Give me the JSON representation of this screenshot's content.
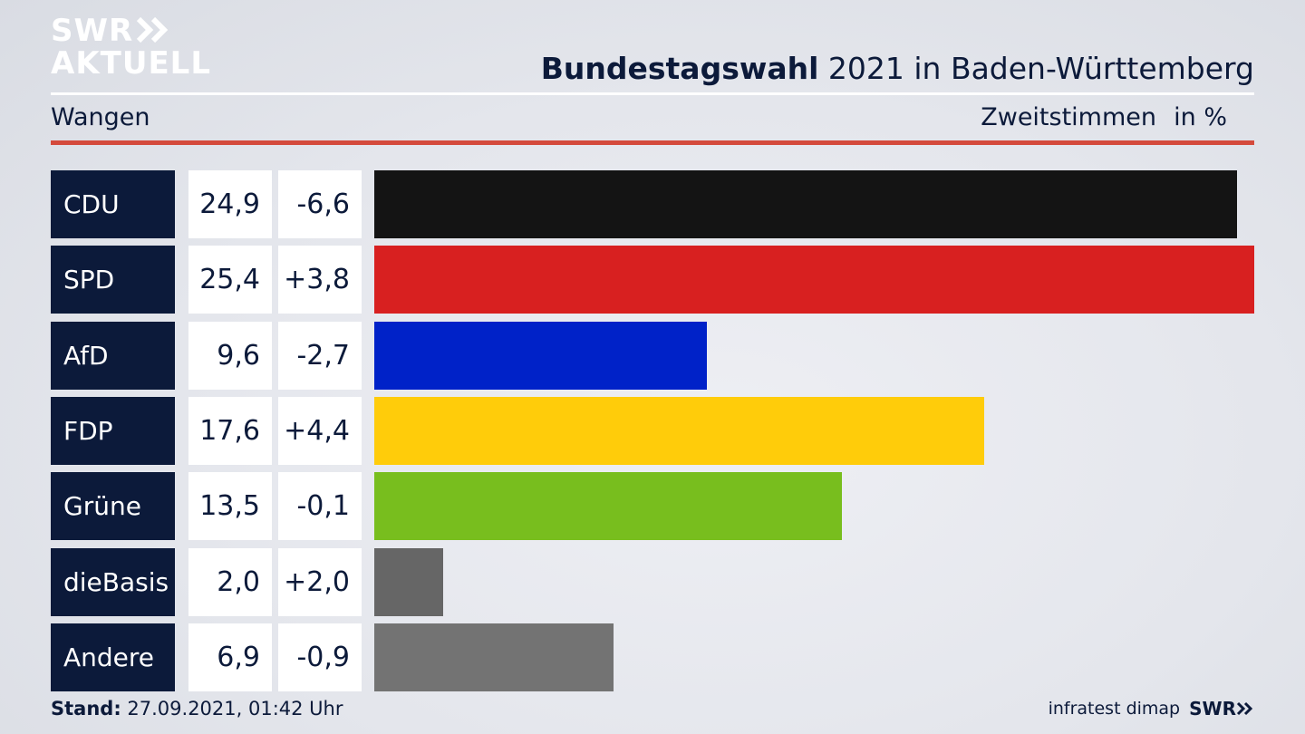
{
  "logo": {
    "line1": "SWR",
    "line2": "AKTUELL",
    "color": "#ffffff"
  },
  "header": {
    "title_bold": "Bundestagswahl",
    "title_rest": " 2021 in Baden-Württemberg",
    "region": "Wangen",
    "metric": "Zweitstimmen",
    "unit": "in %"
  },
  "chart_data": {
    "type": "bar",
    "orientation": "horizontal",
    "categories": [
      "CDU",
      "SPD",
      "AfD",
      "FDP",
      "Grüne",
      "dieBasis",
      "Andere"
    ],
    "values": [
      24.9,
      25.4,
      9.6,
      17.6,
      13.5,
      2.0,
      6.9
    ],
    "value_labels": [
      "24,9",
      "25,4",
      "9,6",
      "17,6",
      "13,5",
      "2,0",
      "6,9"
    ],
    "changes": [
      -6.6,
      3.8,
      -2.7,
      4.4,
      -0.1,
      2.0,
      -0.9
    ],
    "change_labels": [
      "-6,6",
      "+3,8",
      "-2,7",
      "+4,4",
      "-0,1",
      "+2,0",
      "-0,9"
    ],
    "colors": [
      "#141414",
      "#d82020",
      "#0022c8",
      "#ffcc0a",
      "#78be1e",
      "#666666",
      "#737373"
    ],
    "xlim": [
      0,
      25.4
    ]
  },
  "footer": {
    "stand_label": "Stand:",
    "stand_value": " 27.09.2021, 01:42 Uhr",
    "source": "infratest dimap",
    "brand": "SWR"
  }
}
